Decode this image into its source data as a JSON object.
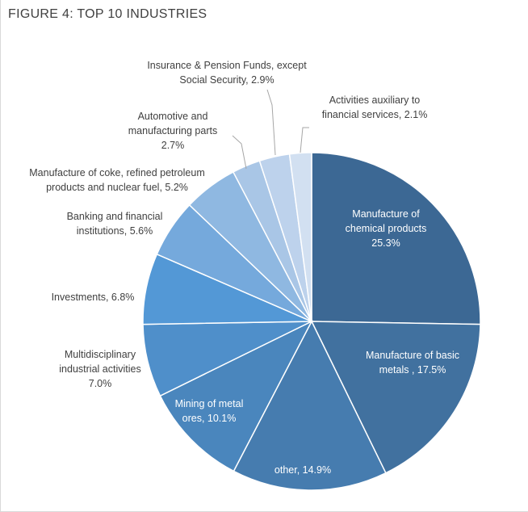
{
  "title": "FIGURE 4: TOP 10 INDUSTRIES",
  "chart_data": {
    "type": "pie",
    "title": "FIGURE 4: TOP 10 INDUSTRIES",
    "slices": [
      {
        "label_lines": [
          "Manufacture of",
          "chemical products",
          "25.3%"
        ],
        "value": 25.3,
        "color": "#3c6894"
      },
      {
        "label_lines": [
          "Manufacture of basic",
          "metals , 17.5%"
        ],
        "value": 17.5,
        "color": "#41719f"
      },
      {
        "label_lines": [
          "other, 14.9%"
        ],
        "value": 14.9,
        "color": "#467caf"
      },
      {
        "label_lines": [
          "Mining of metal",
          "ores, 10.1%"
        ],
        "value": 10.1,
        "color": "#4a86bd"
      },
      {
        "label_lines": [
          "Multidisciplinary",
          "industrial activities",
          "7.0%"
        ],
        "value": 7.0,
        "color": "#4f8fca"
      },
      {
        "label_lines": [
          "Investments, 6.8%"
        ],
        "value": 6.8,
        "color": "#5398d6"
      },
      {
        "label_lines": [
          "Banking and financial",
          "institutions, 5.6%"
        ],
        "value": 5.6,
        "color": "#75a9dc"
      },
      {
        "label_lines": [
          "Manufacture of coke, refined petroleum",
          "products and nuclear fuel, 5.2%"
        ],
        "value": 5.2,
        "color": "#8fb8e1"
      },
      {
        "label_lines": [
          "Automotive and",
          "manufacturing parts",
          "2.7%"
        ],
        "value": 2.7,
        "color": "#a9c6e6"
      },
      {
        "label_lines": [
          "Insurance & Pension Funds, except",
          "Social Security, 2.9%"
        ],
        "value": 2.9,
        "color": "#bdd2ec"
      },
      {
        "label_lines": [
          "Activities auxiliary to",
          "financial services, 2.1%"
        ],
        "value": 2.1,
        "color": "#d2e0f1"
      }
    ]
  }
}
